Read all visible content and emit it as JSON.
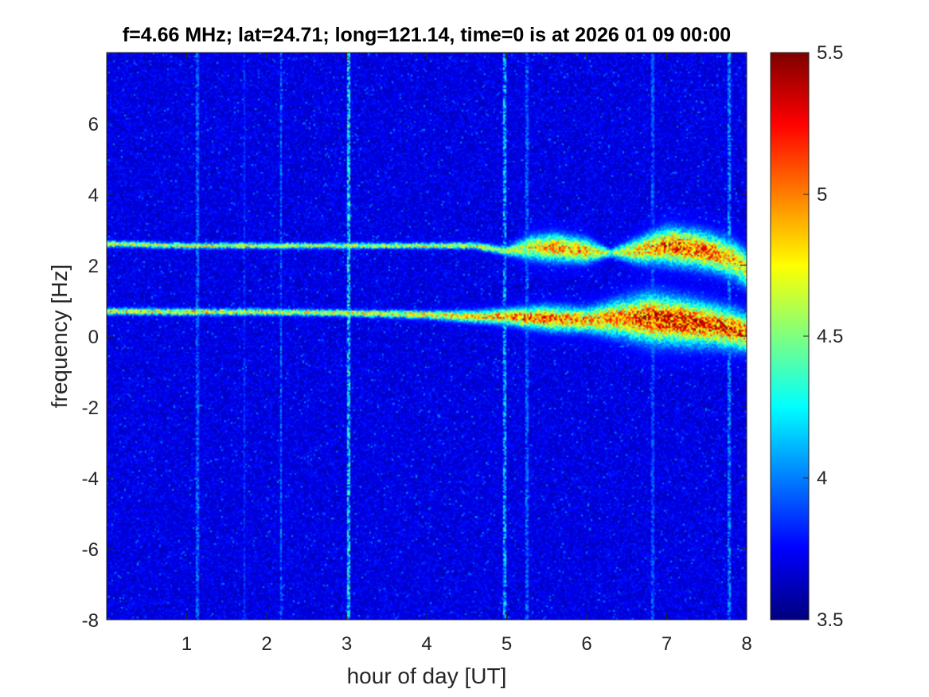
{
  "chart_data": {
    "type": "heatmap",
    "title": "f=4.66 MHz;  lat=24.71; long=121.14, time=0 is at 2026 01 09 00:00",
    "xlabel": "hour of day [UT]",
    "ylabel": "frequency [Hz]",
    "xlim": [
      0,
      8
    ],
    "ylim": [
      -8,
      8
    ],
    "x_ticks": [
      "1",
      "2",
      "3",
      "4",
      "5",
      "6",
      "7",
      "8"
    ],
    "y_ticks": [
      "-8",
      "-6",
      "-4",
      "-2",
      "0",
      "2",
      "4",
      "6"
    ],
    "colorbar": {
      "colormap": "jet",
      "range": [
        3.5,
        5.5
      ],
      "ticks": [
        "3.5",
        "4",
        "4.5",
        "5",
        "5.5"
      ]
    },
    "background_level": 3.7,
    "traces": [
      {
        "x": [
          0,
          1,
          2,
          3,
          4,
          4.6,
          5,
          5.3,
          5.6,
          6,
          6.3,
          6.6,
          7,
          7.4,
          7.8,
          8
        ],
        "y": [
          2.6,
          2.55,
          2.55,
          2.55,
          2.55,
          2.55,
          2.4,
          2.5,
          2.5,
          2.4,
          2.35,
          2.4,
          2.55,
          2.45,
          2.2,
          1.9
        ],
        "peak": [
          4.9,
          4.85,
          4.8,
          4.8,
          4.8,
          4.8,
          4.7,
          4.95,
          5.1,
          5.1,
          4.6,
          5.0,
          5.3,
          5.3,
          5.1,
          4.9
        ],
        "width": [
          0.07,
          0.07,
          0.07,
          0.07,
          0.07,
          0.08,
          0.12,
          0.3,
          0.35,
          0.3,
          0.1,
          0.3,
          0.45,
          0.45,
          0.45,
          0.45
        ]
      },
      {
        "x": [
          0,
          1,
          2,
          3,
          4,
          4.6,
          5,
          5.5,
          6,
          6.4,
          6.8,
          7.2,
          7.6,
          8
        ],
        "y": [
          0.7,
          0.68,
          0.68,
          0.65,
          0.6,
          0.55,
          0.55,
          0.5,
          0.45,
          0.5,
          0.5,
          0.4,
          0.3,
          0.1
        ],
        "peak": [
          5.0,
          4.95,
          4.9,
          4.9,
          4.95,
          5.0,
          5.2,
          5.3,
          5.1,
          5.2,
          5.4,
          5.5,
          5.4,
          5.3
        ],
        "width": [
          0.08,
          0.08,
          0.08,
          0.08,
          0.1,
          0.15,
          0.2,
          0.3,
          0.3,
          0.45,
          0.6,
          0.55,
          0.5,
          0.45
        ]
      }
    ],
    "vertical_lines": [
      {
        "x": 1.13,
        "level": 4.1
      },
      {
        "x": 1.72,
        "level": 3.95
      },
      {
        "x": 2.18,
        "level": 4.15
      },
      {
        "x": 3.02,
        "level": 4.5
      },
      {
        "x": 4.98,
        "level": 4.35
      },
      {
        "x": 5.25,
        "level": 4.1
      },
      {
        "x": 6.82,
        "level": 4.05
      },
      {
        "x": 7.78,
        "level": 4.2
      }
    ]
  }
}
